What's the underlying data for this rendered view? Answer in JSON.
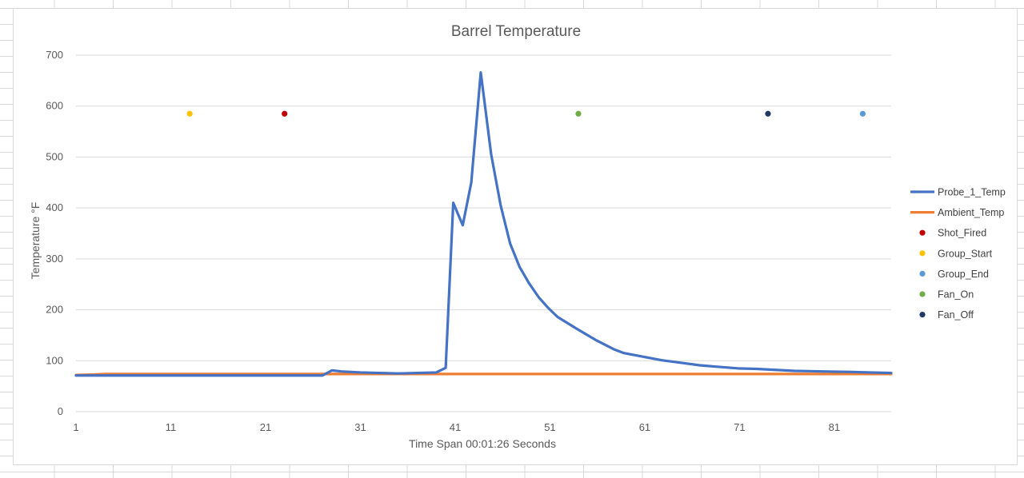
{
  "chart_data": {
    "type": "line",
    "title": "Barrel Temperature",
    "xlabel": "Time Span 00:01:26 Seconds",
    "ylabel": "Temperature °F",
    "xlim": [
      1,
      87
    ],
    "ylim": [
      0,
      700
    ],
    "x_ticks": [
      "1",
      "11",
      "21",
      "31",
      "41",
      "51",
      "61",
      "71",
      "81"
    ],
    "y_ticks": [
      "0",
      "100",
      "200",
      "300",
      "400",
      "500",
      "600",
      "700"
    ],
    "grid": true,
    "legend_position": "right",
    "series": [
      {
        "name": "Probe_1_Temp",
        "kind": "line",
        "color": "#4472c4",
        "points": [
          [
            1,
            71
          ],
          [
            5,
            71
          ],
          [
            10,
            71
          ],
          [
            15,
            71
          ],
          [
            20,
            71
          ],
          [
            25,
            71
          ],
          [
            27,
            71
          ],
          [
            28,
            81
          ],
          [
            29,
            79
          ],
          [
            31,
            77
          ],
          [
            33,
            76
          ],
          [
            35,
            75
          ],
          [
            37,
            76
          ],
          [
            39,
            77
          ],
          [
            40,
            86
          ],
          [
            40.8,
            410
          ],
          [
            41.8,
            366
          ],
          [
            42.7,
            450
          ],
          [
            43.7,
            666
          ],
          [
            44.8,
            505
          ],
          [
            45.8,
            405
          ],
          [
            46.8,
            330
          ],
          [
            47.8,
            284
          ],
          [
            48.8,
            252
          ],
          [
            49.8,
            225
          ],
          [
            50.8,
            204
          ],
          [
            51.8,
            186
          ],
          [
            53.8,
            163
          ],
          [
            55.8,
            141
          ],
          [
            57.8,
            122
          ],
          [
            58.8,
            115
          ],
          [
            60.8,
            108
          ],
          [
            62.8,
            101
          ],
          [
            64.8,
            96
          ],
          [
            66.8,
            91
          ],
          [
            68.8,
            88
          ],
          [
            70.8,
            85
          ],
          [
            72.8,
            84
          ],
          [
            74.8,
            82
          ],
          [
            76.8,
            80
          ],
          [
            79.8,
            79
          ],
          [
            82.8,
            78
          ],
          [
            84.8,
            77
          ],
          [
            87,
            76
          ]
        ]
      },
      {
        "name": "Ambient_Temp",
        "kind": "line",
        "color": "#ed7d31",
        "points": [
          [
            1,
            72
          ],
          [
            3,
            73
          ],
          [
            4,
            74
          ],
          [
            87,
            74
          ]
        ]
      },
      {
        "name": "Shot_Fired",
        "kind": "marker",
        "color": "#c00000",
        "points": [
          [
            23,
            585
          ]
        ]
      },
      {
        "name": "Group_Start",
        "kind": "marker",
        "color": "#ffc000",
        "points": [
          [
            13,
            585
          ]
        ]
      },
      {
        "name": "Group_End",
        "kind": "marker",
        "color": "#5b9bd5",
        "points": [
          [
            84,
            585
          ]
        ]
      },
      {
        "name": "Fan_On",
        "kind": "marker",
        "color": "#70ad47",
        "points": [
          [
            54,
            585
          ]
        ]
      },
      {
        "name": "Fan_Off",
        "kind": "marker",
        "color": "#203864",
        "points": [
          [
            74,
            585
          ]
        ]
      }
    ]
  }
}
